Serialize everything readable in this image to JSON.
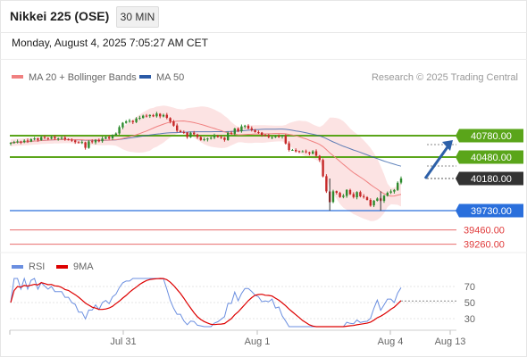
{
  "header": {
    "title": "Nikkei 225 (OSE)",
    "interval": "30 MIN",
    "timestamp": "Monday, August 4, 2025 7:05:27 AM CET"
  },
  "colors": {
    "ma20": "#f08080",
    "ma50": "#2a5aa6",
    "band_fill": "#fcdede",
    "support_green": "#5aa51a",
    "blue_level": "#2a6fdc",
    "red_level": "#e03a3a",
    "current_price": "#333333",
    "arrow": "#2d60a8",
    "rsi": "#6b8fe0",
    "rsi_ma": "#dd0000",
    "candle_up": "#2e8b2e",
    "candle_down": "#c62828"
  },
  "chart_data": [
    {
      "type": "candlestick",
      "legend": [
        {
          "name": "MA 20 + Bollinger Bands",
          "color": "#f08080"
        },
        {
          "name": "MA 50",
          "color": "#2a5aa6"
        }
      ],
      "source_note": "Research © 2025 Trading Central",
      "x_tick_labels": [
        "Jul 31",
        "Aug 1",
        "Aug 4",
        "Aug 13"
      ],
      "levels": [
        {
          "label": "40780.00",
          "value": 40780,
          "kind": "resistance",
          "color": "#5aa51a"
        },
        {
          "label": "40480.00",
          "value": 40480,
          "kind": "resistance",
          "color": "#5aa51a"
        },
        {
          "label": "40180.00",
          "value": 40180,
          "kind": "current-price",
          "color": "#333333"
        },
        {
          "label": "39730.00",
          "value": 39730,
          "kind": "pivot",
          "color": "#2a6fdc"
        },
        {
          "label": "39460.00",
          "value": 39460,
          "kind": "support",
          "color": "#e03a3a"
        },
        {
          "label": "39260.00",
          "value": 39260,
          "kind": "support",
          "color": "#e03a3a"
        }
      ],
      "forecast_arrow": {
        "from": 40180,
        "to": 40780
      },
      "close_values": [
        40680,
        40690,
        40700,
        40690,
        40710,
        40700,
        40730,
        40740,
        40720,
        40760,
        40750,
        40740,
        40760,
        40740,
        40740,
        40750,
        40730,
        40720,
        40710,
        40690,
        40680,
        40690,
        40610,
        40700,
        40690,
        40720,
        40700,
        40740,
        40760,
        40740,
        40790,
        40810,
        40900,
        40960,
        40980,
        40990,
        40970,
        41020,
        41030,
        41060,
        41050,
        41070,
        41050,
        41090,
        41050,
        41070,
        41030,
        40980,
        40920,
        40850,
        40830,
        40820,
        40760,
        40820,
        40800,
        40760,
        40720,
        40730,
        40740,
        40750,
        40780,
        40760,
        40750,
        40720,
        40820,
        40810,
        40880,
        40840,
        40910,
        40920,
        40880,
        40860,
        40830,
        40820,
        40790,
        40780,
        40760,
        40760,
        40770,
        40770,
        40780,
        40670,
        40580,
        40580,
        40560,
        40560,
        40560,
        40550,
        40530,
        40560,
        40500,
        40440,
        40210,
        40000,
        39850,
        40000,
        39980,
        39920,
        39940,
        40020,
        39960,
        39920,
        39990,
        39930,
        39920,
        39880,
        39800,
        39870,
        39900,
        39870,
        39940,
        39980,
        40000,
        40020,
        40120,
        40180
      ],
      "rsi": {
        "ticks": [
          70,
          50,
          30
        ],
        "range": [
          20,
          80
        ],
        "legend": [
          {
            "name": "RSI",
            "color": "#6b8fe0"
          },
          {
            "name": "9MA",
            "color": "#dd0000"
          }
        ],
        "last_value": 52
      }
    }
  ]
}
